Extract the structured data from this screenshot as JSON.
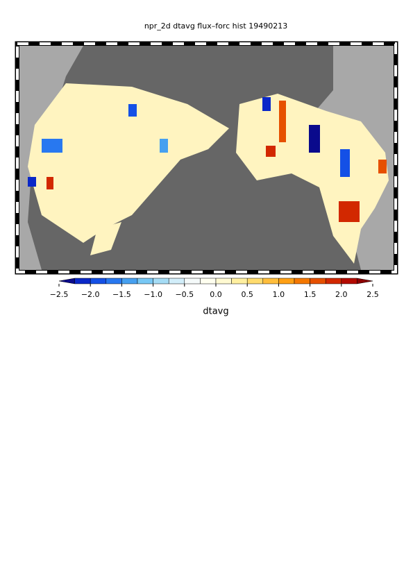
{
  "title": "npr_2d dtavg flux–forc hist 19490213",
  "colorbar": {
    "label": "dtavg",
    "lim": [
      -2.5,
      2.5
    ],
    "ticks": [
      {
        "value": -2.5,
        "label": "−2.5"
      },
      {
        "value": -2.0,
        "label": "−2.0"
      },
      {
        "value": -1.5,
        "label": "−1.5"
      },
      {
        "value": -1.0,
        "label": "−1.0"
      },
      {
        "value": -0.5,
        "label": "−0.5"
      },
      {
        "value": 0,
        "label": "0.0"
      },
      0.5,
      {
        "value": 1,
        "label": "1.0"
      },
      1.5,
      {
        "value": 2,
        "label": "2.0"
      },
      2.5
    ],
    "colors": [
      "#0a0a8c",
      "#0a28c8",
      "#1450e6",
      "#2878f0",
      "#46a0f0",
      "#78c8f5",
      "#a5dcf5",
      "#d2eefa",
      "#f5fafa",
      "#fffff0",
      "#fffad2",
      "#fff0a0",
      "#ffdc6e",
      "#ffbe3c",
      "#ffa014",
      "#f57800",
      "#e65000",
      "#d22800",
      "#b40a00",
      "#8c0000"
    ]
  }
}
